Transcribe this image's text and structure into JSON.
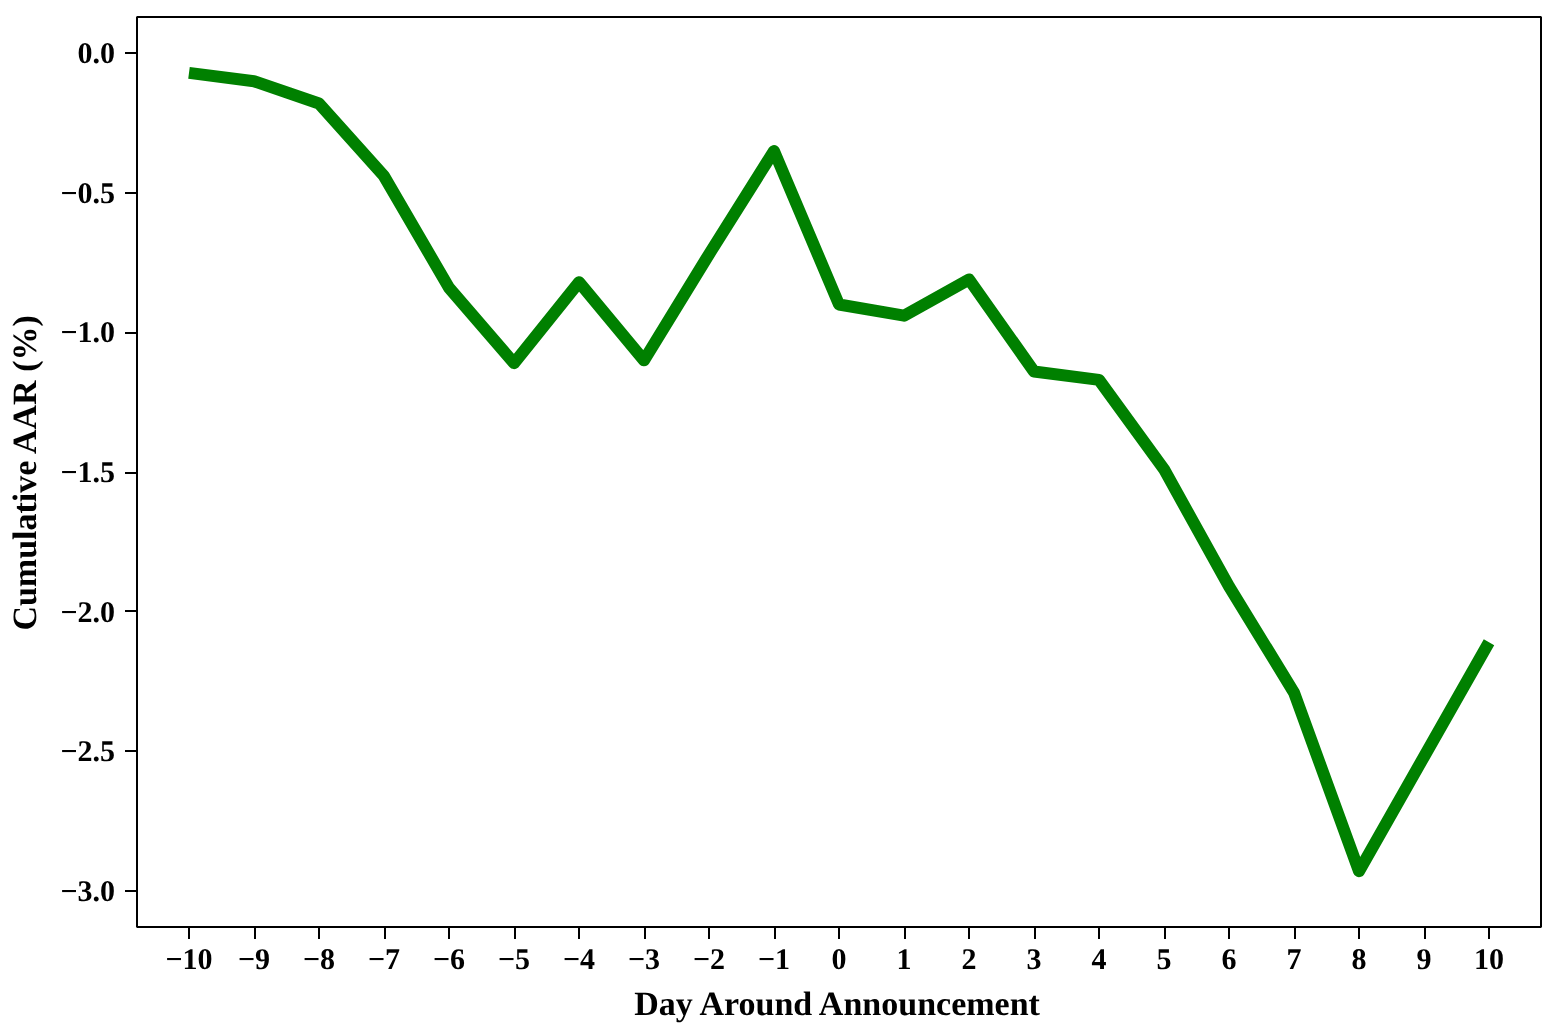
{
  "chart_data": {
    "type": "line",
    "xlabel": "Day Around Announcement",
    "ylabel": "Cumulative AAR (%)",
    "x": [
      -10,
      -9,
      -8,
      -7,
      -6,
      -5,
      -4,
      -3,
      -2,
      -1,
      0,
      1,
      2,
      3,
      4,
      5,
      6,
      7,
      8,
      9,
      10
    ],
    "series": [
      {
        "color": "#008000",
        "values": [
          -0.07,
          -0.1,
          -0.18,
          -0.44,
          -0.84,
          -1.11,
          -0.82,
          -1.1,
          -0.72,
          -0.35,
          -0.9,
          -0.94,
          -0.81,
          -1.14,
          -1.17,
          -1.49,
          -1.91,
          -2.29,
          -2.93,
          -2.52,
          -2.11
        ]
      }
    ],
    "xlim": [
      -10.8,
      10.8
    ],
    "ylim": [
      -3.13,
      0.13
    ],
    "xticks": [
      -10,
      -9,
      -8,
      -7,
      -6,
      -5,
      -4,
      -3,
      -2,
      -1,
      0,
      1,
      2,
      3,
      4,
      5,
      6,
      7,
      8,
      9,
      10
    ],
    "yticks": [
      {
        "value": -3.0,
        "label": "−3.0"
      },
      {
        "value": -2.5,
        "label": "−2.5"
      },
      {
        "value": -2.0,
        "label": "−2.0"
      },
      {
        "value": -1.5,
        "label": "−1.5"
      },
      {
        "value": -1.0,
        "label": "−1.0"
      },
      {
        "value": -0.5,
        "label": "−0.5"
      },
      {
        "value": 0.0,
        "label": "0.0"
      }
    ],
    "line_style": "solid"
  }
}
